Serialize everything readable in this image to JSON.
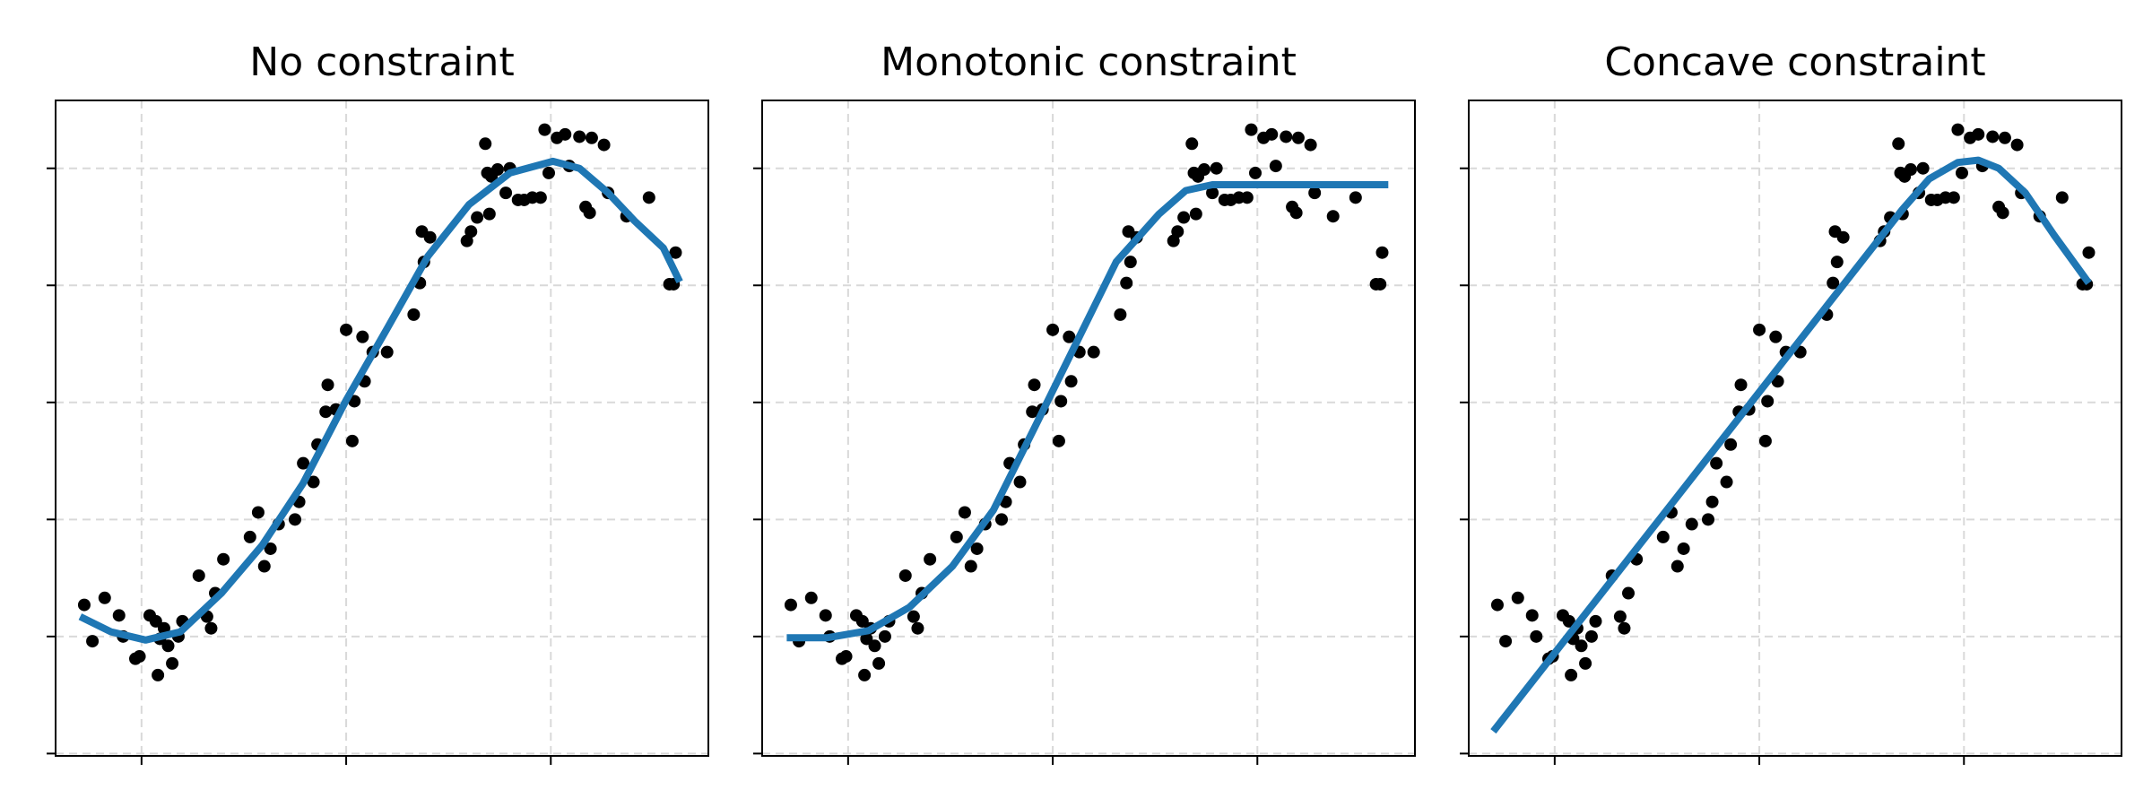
{
  "chart_data": [
    {
      "type": "scatter",
      "title": "No constraint",
      "grid": true,
      "xlim": [
        -0.42,
        2.77
      ],
      "ylim": [
        -0.02,
        5.58
      ],
      "xticks": [
        0,
        1,
        2
      ],
      "yticks": [
        0,
        1,
        2,
        3,
        4,
        5
      ],
      "points": {
        "color": "#000000",
        "x": [
          -0.28,
          -0.24,
          -0.18,
          -0.11,
          -0.09,
          -0.03,
          -0.01,
          0.04,
          0.07,
          0.08,
          0.09,
          0.11,
          0.13,
          0.15,
          0.18,
          0.2,
          0.28,
          0.32,
          0.34,
          0.36,
          0.4,
          0.53,
          0.57,
          0.6,
          0.63,
          0.67,
          0.75,
          0.77,
          0.79,
          0.84,
          0.86,
          0.9,
          0.91,
          0.95,
          1.0,
          1.03,
          1.04,
          1.08,
          1.09,
          1.13,
          1.2,
          1.33,
          1.36,
          1.38,
          1.37,
          1.41,
          1.59,
          1.61,
          1.64,
          1.68,
          1.69,
          1.7,
          1.71,
          1.74,
          1.78,
          1.8,
          1.84,
          1.87,
          1.91,
          1.95,
          1.97,
          1.99,
          2.03,
          2.07,
          2.09,
          2.14,
          2.17,
          2.19,
          2.2,
          2.26,
          2.28,
          2.37,
          2.48,
          2.58,
          2.6,
          2.61
        ],
        "y": [
          1.27,
          0.96,
          1.33,
          1.18,
          1.0,
          0.81,
          0.83,
          1.18,
          1.13,
          0.67,
          0.98,
          1.07,
          0.92,
          0.77,
          1.0,
          1.13,
          1.52,
          1.17,
          1.07,
          1.37,
          1.66,
          1.85,
          2.06,
          1.6,
          1.75,
          1.96,
          2.0,
          2.15,
          2.48,
          2.32,
          2.64,
          2.92,
          3.15,
          2.94,
          3.62,
          2.67,
          3.01,
          3.56,
          3.18,
          3.43,
          3.43,
          3.75,
          4.02,
          4.2,
          4.46,
          4.41,
          4.38,
          4.46,
          4.58,
          5.21,
          4.96,
          4.61,
          4.93,
          4.99,
          4.79,
          5.0,
          4.73,
          4.73,
          4.75,
          4.75,
          5.33,
          4.96,
          5.26,
          5.29,
          5.02,
          5.27,
          4.67,
          4.62,
          5.26,
          5.2,
          4.79,
          4.59,
          4.75,
          4.01,
          4.01,
          4.28
        ]
      },
      "line": {
        "color": "#1f77b4",
        "x": [
          -0.3,
          -0.15,
          0.02,
          0.19,
          0.39,
          0.59,
          0.79,
          1.0,
          1.2,
          1.4,
          1.6,
          1.8,
          2.01,
          2.14,
          2.28,
          2.41,
          2.55,
          2.63
        ],
        "y": [
          1.17,
          1.04,
          0.97,
          1.04,
          1.37,
          1.78,
          2.31,
          3.02,
          3.63,
          4.25,
          4.69,
          4.96,
          5.06,
          5.0,
          4.79,
          4.55,
          4.32,
          4.03
        ]
      }
    },
    {
      "type": "scatter",
      "title": "Monotonic constraint",
      "grid": true,
      "xlim": [
        -0.42,
        2.77
      ],
      "ylim": [
        -0.02,
        5.58
      ],
      "xticks": [
        0,
        1,
        2
      ],
      "yticks": [
        0,
        1,
        2,
        3,
        4,
        5
      ],
      "points": {
        "color": "#000000",
        "x": [
          -0.28,
          -0.24,
          -0.18,
          -0.11,
          -0.09,
          -0.03,
          -0.01,
          0.04,
          0.07,
          0.08,
          0.09,
          0.11,
          0.13,
          0.15,
          0.18,
          0.2,
          0.28,
          0.32,
          0.34,
          0.36,
          0.4,
          0.53,
          0.57,
          0.6,
          0.63,
          0.67,
          0.75,
          0.77,
          0.79,
          0.84,
          0.86,
          0.9,
          0.91,
          0.95,
          1.0,
          1.03,
          1.04,
          1.08,
          1.09,
          1.13,
          1.2,
          1.33,
          1.36,
          1.38,
          1.37,
          1.41,
          1.59,
          1.61,
          1.64,
          1.68,
          1.69,
          1.7,
          1.71,
          1.74,
          1.78,
          1.8,
          1.84,
          1.87,
          1.91,
          1.95,
          1.97,
          1.99,
          2.03,
          2.07,
          2.09,
          2.14,
          2.17,
          2.19,
          2.2,
          2.26,
          2.28,
          2.37,
          2.48,
          2.58,
          2.6,
          2.61
        ],
        "y": [
          1.27,
          0.96,
          1.33,
          1.18,
          1.0,
          0.81,
          0.83,
          1.18,
          1.13,
          0.67,
          0.98,
          1.07,
          0.92,
          0.77,
          1.0,
          1.13,
          1.52,
          1.17,
          1.07,
          1.37,
          1.66,
          1.85,
          2.06,
          1.6,
          1.75,
          1.96,
          2.0,
          2.15,
          2.48,
          2.32,
          2.64,
          2.92,
          3.15,
          2.94,
          3.62,
          2.67,
          3.01,
          3.56,
          3.18,
          3.43,
          3.43,
          3.75,
          4.02,
          4.2,
          4.46,
          4.41,
          4.38,
          4.46,
          4.58,
          5.21,
          4.96,
          4.61,
          4.93,
          4.99,
          4.79,
          5.0,
          4.73,
          4.73,
          4.75,
          4.75,
          5.33,
          4.96,
          5.26,
          5.29,
          5.02,
          5.27,
          4.67,
          4.62,
          5.26,
          5.2,
          4.79,
          4.59,
          4.75,
          4.01,
          4.01,
          4.28
        ]
      },
      "line": {
        "color": "#1f77b4",
        "x": [
          -0.3,
          -0.1,
          0.1,
          0.3,
          0.51,
          0.71,
          0.91,
          1.11,
          1.31,
          1.52,
          1.65,
          1.78,
          2.64
        ],
        "y": [
          0.99,
          0.99,
          1.05,
          1.25,
          1.6,
          2.08,
          2.78,
          3.49,
          4.2,
          4.61,
          4.81,
          4.86,
          4.86
        ]
      }
    },
    {
      "type": "scatter",
      "title": "Concave constraint",
      "grid": true,
      "xlim": [
        -0.42,
        2.77
      ],
      "ylim": [
        -0.02,
        5.58
      ],
      "xticks": [
        0,
        1,
        2
      ],
      "yticks": [
        0,
        1,
        2,
        3,
        4,
        5
      ],
      "points": {
        "color": "#000000",
        "x": [
          -0.28,
          -0.24,
          -0.18,
          -0.11,
          -0.09,
          -0.03,
          -0.01,
          0.04,
          0.07,
          0.08,
          0.09,
          0.11,
          0.13,
          0.15,
          0.18,
          0.2,
          0.28,
          0.32,
          0.34,
          0.36,
          0.4,
          0.53,
          0.57,
          0.6,
          0.63,
          0.67,
          0.75,
          0.77,
          0.79,
          0.84,
          0.86,
          0.9,
          0.91,
          0.95,
          1.0,
          1.03,
          1.04,
          1.08,
          1.09,
          1.13,
          1.2,
          1.33,
          1.36,
          1.38,
          1.37,
          1.41,
          1.59,
          1.61,
          1.64,
          1.68,
          1.69,
          1.7,
          1.71,
          1.74,
          1.78,
          1.8,
          1.84,
          1.87,
          1.91,
          1.95,
          1.97,
          1.99,
          2.03,
          2.07,
          2.09,
          2.14,
          2.17,
          2.19,
          2.2,
          2.26,
          2.28,
          2.37,
          2.48,
          2.58,
          2.6,
          2.61
        ],
        "y": [
          1.27,
          0.96,
          1.33,
          1.18,
          1.0,
          0.81,
          0.83,
          1.18,
          1.13,
          0.67,
          0.98,
          1.07,
          0.92,
          0.77,
          1.0,
          1.13,
          1.52,
          1.17,
          1.07,
          1.37,
          1.66,
          1.85,
          2.06,
          1.6,
          1.75,
          1.96,
          2.0,
          2.15,
          2.48,
          2.32,
          2.64,
          2.92,
          3.15,
          2.94,
          3.62,
          2.67,
          3.01,
          3.56,
          3.18,
          3.43,
          3.43,
          3.75,
          4.02,
          4.2,
          4.46,
          4.41,
          4.38,
          4.46,
          4.58,
          5.21,
          4.96,
          4.61,
          4.93,
          4.99,
          4.79,
          5.0,
          4.73,
          4.73,
          4.75,
          4.75,
          5.33,
          4.96,
          5.26,
          5.29,
          5.02,
          5.27,
          4.67,
          4.62,
          5.26,
          5.2,
          4.79,
          4.59,
          4.75,
          4.01,
          4.01,
          4.28
        ]
      },
      "line": {
        "color": "#1f77b4",
        "x": [
          -0.3,
          1.7,
          1.83,
          1.97,
          2.07,
          2.17,
          2.3,
          2.44,
          2.61
        ],
        "y": [
          0.19,
          4.65,
          4.91,
          5.05,
          5.07,
          5.0,
          4.79,
          4.43,
          4.02
        ]
      }
    }
  ]
}
